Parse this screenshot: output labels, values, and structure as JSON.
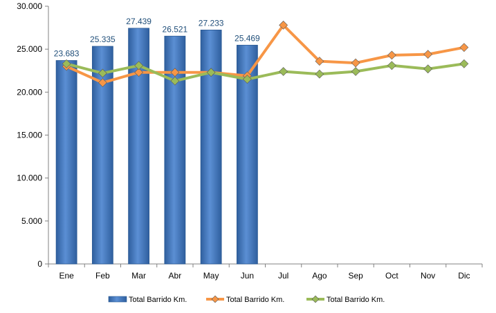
{
  "chart_data": {
    "type": "bar",
    "categories": [
      "Ene",
      "Feb",
      "Mar",
      "Abr",
      "May",
      "Jun",
      "Jul",
      "Ago",
      "Sep",
      "Oct",
      "Nov",
      "Dic"
    ],
    "ylim": [
      0,
      30000
    ],
    "yticks": [
      0,
      5000,
      10000,
      15000,
      20000,
      25000,
      30000
    ],
    "ytick_labels": [
      "0",
      "5.000",
      "10.000",
      "15.000",
      "20.000",
      "25.000",
      "30.000"
    ],
    "grid": false,
    "legend_position": "bottom",
    "series": [
      {
        "name": "Total Barrido Km.",
        "type": "bar",
        "color": "#4F81BD",
        "values": [
          23683,
          25335,
          27439,
          26521,
          27233,
          25469,
          null,
          null,
          null,
          null,
          null,
          null
        ],
        "data_labels": [
          "23.683",
          "25.335",
          "27.439",
          "26.521",
          "27.233",
          "25.469"
        ]
      },
      {
        "name": "Total Barrido Km.",
        "type": "line",
        "color": "#F79646",
        "marker": "diamond",
        "values": [
          23000,
          21100,
          22300,
          22300,
          22300,
          21900,
          27800,
          23600,
          23400,
          24300,
          24400,
          25200
        ]
      },
      {
        "name": "Total Barrido Km.",
        "type": "line",
        "color": "#9BBB59",
        "marker": "diamond",
        "values": [
          23300,
          22200,
          23100,
          21300,
          22300,
          21500,
          22400,
          22100,
          22400,
          23100,
          22700,
          23300
        ]
      }
    ]
  }
}
